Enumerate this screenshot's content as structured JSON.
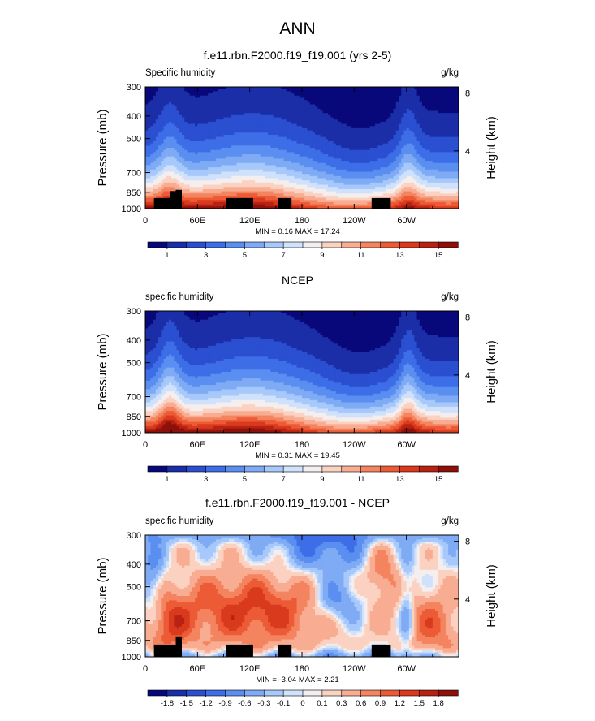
{
  "page_title": "ANN",
  "chart_data": [
    {
      "type": "heatmap",
      "title": "f.e11.rbn.F2000.f19_f19.001 (yrs 2-5)",
      "left_label": "Specific humidity",
      "right_label": "g/kg",
      "ylabel": "Pressure (mb)",
      "ylabel_right": "Height (km)",
      "x_ticks": [
        "0",
        "60E",
        "120E",
        "180",
        "120W",
        "60W"
      ],
      "x_tick_values": [
        0,
        60,
        120,
        180,
        240,
        300
      ],
      "xlim": [
        0,
        360
      ],
      "y_ticks": [
        "300",
        "400",
        "500",
        "700",
        "850",
        "1000"
      ],
      "y_tick_values": [
        300,
        400,
        500,
        700,
        850,
        1000
      ],
      "ylim": [
        1000,
        300
      ],
      "y_right_ticks": [
        "8",
        "4"
      ],
      "y_right_tick_values": [
        8,
        4
      ],
      "min_max_text": "MIN =  0.16  MAX =  17.24",
      "min": 0.16,
      "max": 17.24,
      "colorbar_labels": [
        "1",
        "3",
        "5",
        "7",
        "9",
        "11",
        "13",
        "15"
      ],
      "colorbar_label_positions": [
        1,
        3,
        5,
        7,
        9,
        11,
        13,
        15
      ],
      "levels": [
        0,
        1,
        2,
        3,
        4,
        5,
        6,
        7,
        8,
        9,
        10,
        11,
        12,
        13,
        14,
        15,
        16
      ],
      "field": "model",
      "terrain": true
    },
    {
      "type": "heatmap",
      "title": "NCEP",
      "left_label": "specific humidity",
      "right_label": "g/kg",
      "ylabel": "Pressure (mb)",
      "ylabel_right": "Height (km)",
      "x_ticks": [
        "0",
        "60E",
        "120E",
        "180",
        "120W",
        "60W"
      ],
      "x_tick_values": [
        0,
        60,
        120,
        180,
        240,
        300
      ],
      "xlim": [
        0,
        360
      ],
      "y_ticks": [
        "300",
        "400",
        "500",
        "700",
        "850",
        "1000"
      ],
      "y_tick_values": [
        300,
        400,
        500,
        700,
        850,
        1000
      ],
      "ylim": [
        1000,
        300
      ],
      "y_right_ticks": [
        "8",
        "4"
      ],
      "y_right_tick_values": [
        8,
        4
      ],
      "min_max_text": "MIN =  0.31  MAX =  19.45",
      "min": 0.31,
      "max": 19.45,
      "colorbar_labels": [
        "1",
        "3",
        "5",
        "7",
        "9",
        "11",
        "13",
        "15"
      ],
      "colorbar_label_positions": [
        1,
        3,
        5,
        7,
        9,
        11,
        13,
        15
      ],
      "levels": [
        0,
        1,
        2,
        3,
        4,
        5,
        6,
        7,
        8,
        9,
        10,
        11,
        12,
        13,
        14,
        15,
        16
      ],
      "field": "obs",
      "terrain": false
    },
    {
      "type": "heatmap",
      "title": "f.e11.rbn.F2000.f19_f19.001 - NCEP",
      "left_label": "specific humidity",
      "right_label": "g/kg",
      "ylabel": "Pressure (mb)",
      "ylabel_right": "Height (km)",
      "x_ticks": [
        "0",
        "60E",
        "120E",
        "180",
        "120W",
        "60W"
      ],
      "x_tick_values": [
        0,
        60,
        120,
        180,
        240,
        300
      ],
      "xlim": [
        0,
        360
      ],
      "y_ticks": [
        "300",
        "400",
        "500",
        "700",
        "850",
        "1000"
      ],
      "y_tick_values": [
        300,
        400,
        500,
        700,
        850,
        1000
      ],
      "ylim": [
        1000,
        300
      ],
      "y_right_ticks": [
        "8",
        "4"
      ],
      "y_right_tick_values": [
        8,
        4
      ],
      "min_max_text": "MIN = -3.04  MAX =  2.21",
      "min": -3.04,
      "max": 2.21,
      "colorbar_labels": [
        "-1.8",
        "-1.5",
        "-1.2",
        "-0.9",
        "-0.6",
        "-0.3",
        "-0.1",
        "0",
        "0.1",
        "0.3",
        "0.6",
        "0.9",
        "1.2",
        "1.5",
        "1.8"
      ],
      "colorbar_label_positions": [
        1,
        2,
        3,
        4,
        5,
        6,
        7,
        8,
        9,
        10,
        11,
        12,
        13,
        14,
        15
      ],
      "levels": [
        -99,
        -1.8,
        -1.5,
        -1.2,
        -0.9,
        -0.6,
        -0.3,
        -0.1,
        0,
        0.1,
        0.3,
        0.6,
        0.9,
        1.2,
        1.5,
        1.8
      ],
      "field": "diff",
      "terrain": true
    }
  ],
  "colors": {
    "palette": [
      "#08087a",
      "#1b2ea8",
      "#2a4fd0",
      "#3d6ee8",
      "#5a8ef0",
      "#7fabf5",
      "#a6c8fa",
      "#cfe1fb",
      "#f4eeee",
      "#fbd2c2",
      "#f8ad93",
      "#f4845f",
      "#ec5a36",
      "#d93a1d",
      "#b72212",
      "#8e100a"
    ],
    "terrain": "#000000"
  }
}
